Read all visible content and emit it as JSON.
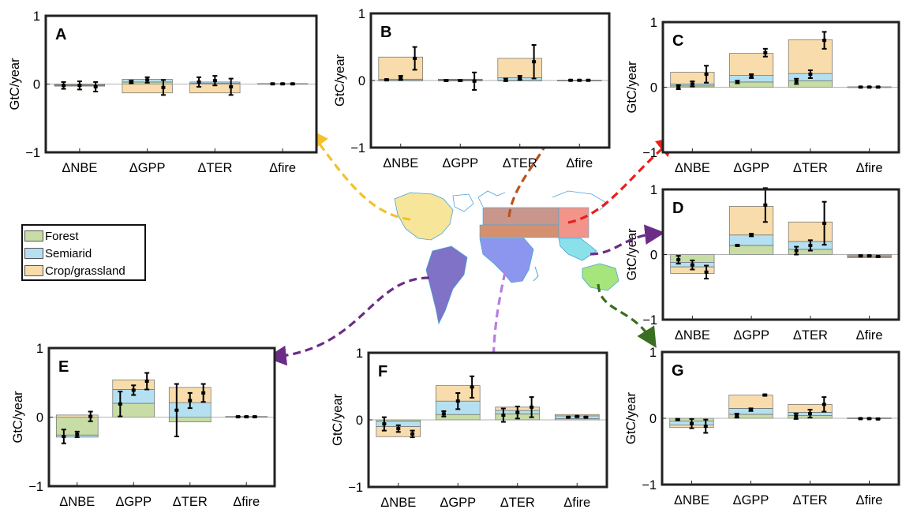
{
  "colors": {
    "forest": "#c7dda5",
    "semiarid": "#b4e0f2",
    "crop": "#f8dcab",
    "arrow_yellow": "#f3c12b",
    "arrow_brown": "#b6531f",
    "arrow_red": "#e8201b",
    "arrow_purple": "#6b2c85",
    "arrow_lilac": "#b77de0",
    "arrow_green": "#3a6e20"
  },
  "legend": {
    "forest": "Forest",
    "semiarid": "Semiarid",
    "crop": "Crop/grassland"
  },
  "chart_data": [
    {
      "type": "bar",
      "panel": "A",
      "categories": [
        "ΔNBE",
        "ΔGPP",
        "ΔTER",
        "Δfire"
      ],
      "ylabel": "GtC/year",
      "ylim": [
        -1,
        1
      ],
      "yticks": [
        "1",
        "0",
        "−1"
      ],
      "series": [
        {
          "name": "Forest",
          "values": [
            -0.02,
            0.03,
            0.01,
            0.003
          ]
        },
        {
          "name": "Semiarid",
          "values": [
            -0.01,
            0.04,
            0.02,
            0.002
          ]
        },
        {
          "name": "Crop/grassland",
          "values": [
            0.0,
            -0.13,
            -0.13,
            0.002
          ]
        }
      ],
      "errors": [
        {
          "cat": 0,
          "off": -0.32,
          "v": -0.02,
          "e": 0.05
        },
        {
          "cat": 0,
          "off": 0.0,
          "v": -0.02,
          "e": 0.06
        },
        {
          "cat": 0,
          "off": 0.32,
          "v": -0.04,
          "e": 0.07
        },
        {
          "cat": 1,
          "off": -0.32,
          "v": 0.03,
          "e": 0.02
        },
        {
          "cat": 1,
          "off": 0.0,
          "v": 0.06,
          "e": 0.04
        },
        {
          "cat": 1,
          "off": 0.32,
          "v": -0.05,
          "e": 0.11
        },
        {
          "cat": 2,
          "off": -0.32,
          "v": 0.03,
          "e": 0.07
        },
        {
          "cat": 2,
          "off": 0.0,
          "v": 0.05,
          "e": 0.07
        },
        {
          "cat": 2,
          "off": 0.32,
          "v": -0.04,
          "e": 0.12
        },
        {
          "cat": 3,
          "off": -0.2,
          "v": 0.003,
          "e": 0.005
        },
        {
          "cat": 3,
          "off": 0.0,
          "v": 0.003,
          "e": 0.005
        },
        {
          "cat": 3,
          "off": 0.2,
          "v": 0.003,
          "e": 0.005
        }
      ]
    },
    {
      "type": "bar",
      "panel": "B",
      "categories": [
        "ΔNBE",
        "ΔGPP",
        "ΔTER",
        "Δfire"
      ],
      "ylabel": "GtC/year",
      "ylim": [
        -1,
        1
      ],
      "yticks": [
        "1",
        "0",
        "−1"
      ],
      "series": [
        {
          "name": "Forest",
          "values": [
            0.0,
            0.0,
            0.0,
            0.0
          ]
        },
        {
          "name": "Semiarid",
          "values": [
            0.02,
            0.01,
            0.04,
            0.003
          ]
        },
        {
          "name": "Crop/grassland",
          "values": [
            0.33,
            0.01,
            0.29,
            0.002
          ]
        }
      ],
      "errors": [
        {
          "cat": 0,
          "off": -0.32,
          "v": 0.01,
          "e": 0.01
        },
        {
          "cat": 0,
          "off": 0.0,
          "v": 0.04,
          "e": 0.03
        },
        {
          "cat": 0,
          "off": 0.32,
          "v": 0.33,
          "e": 0.17
        },
        {
          "cat": 1,
          "off": -0.32,
          "v": 0.0,
          "e": 0.01
        },
        {
          "cat": 1,
          "off": 0.0,
          "v": 0.0,
          "e": 0.01
        },
        {
          "cat": 1,
          "off": 0.32,
          "v": -0.01,
          "e": 0.13
        },
        {
          "cat": 2,
          "off": -0.32,
          "v": 0.01,
          "e": 0.02
        },
        {
          "cat": 2,
          "off": 0.0,
          "v": 0.04,
          "e": 0.03
        },
        {
          "cat": 2,
          "off": 0.32,
          "v": 0.28,
          "e": 0.25
        },
        {
          "cat": 3,
          "off": -0.2,
          "v": 0.003,
          "e": 0.005
        },
        {
          "cat": 3,
          "off": 0.0,
          "v": 0.003,
          "e": 0.005
        },
        {
          "cat": 3,
          "off": 0.2,
          "v": 0.003,
          "e": 0.005
        }
      ]
    },
    {
      "type": "bar",
      "panel": "C",
      "categories": [
        "ΔNBE",
        "ΔGPP",
        "ΔTER",
        "Δfire"
      ],
      "ylabel": "GtC/year",
      "ylim": [
        -1,
        1
      ],
      "yticks": [
        "1",
        "0",
        "−1"
      ],
      "series": [
        {
          "name": "Forest",
          "values": [
            0.02,
            0.08,
            0.1,
            0.002
          ]
        },
        {
          "name": "Semiarid",
          "values": [
            0.03,
            0.1,
            0.11,
            0.002
          ]
        },
        {
          "name": "Crop/grassland",
          "values": [
            0.18,
            0.34,
            0.52,
            0.002
          ]
        }
      ],
      "errors": [
        {
          "cat": 0,
          "off": -0.32,
          "v": 0.0,
          "e": 0.03
        },
        {
          "cat": 0,
          "off": 0.0,
          "v": 0.05,
          "e": 0.04
        },
        {
          "cat": 0,
          "off": 0.32,
          "v": 0.2,
          "e": 0.13
        },
        {
          "cat": 1,
          "off": -0.32,
          "v": 0.08,
          "e": 0.02
        },
        {
          "cat": 1,
          "off": 0.0,
          "v": 0.17,
          "e": 0.03
        },
        {
          "cat": 1,
          "off": 0.32,
          "v": 0.53,
          "e": 0.06
        },
        {
          "cat": 2,
          "off": -0.32,
          "v": 0.09,
          "e": 0.04
        },
        {
          "cat": 2,
          "off": 0.0,
          "v": 0.2,
          "e": 0.06
        },
        {
          "cat": 2,
          "off": 0.32,
          "v": 0.72,
          "e": 0.13
        },
        {
          "cat": 3,
          "off": -0.2,
          "v": 0.002,
          "e": 0.004
        },
        {
          "cat": 3,
          "off": 0.0,
          "v": 0.002,
          "e": 0.004
        },
        {
          "cat": 3,
          "off": 0.2,
          "v": 0.002,
          "e": 0.004
        }
      ]
    },
    {
      "type": "bar",
      "panel": "D",
      "categories": [
        "ΔNBE",
        "ΔGPP",
        "ΔTER",
        "Δfire"
      ],
      "ylabel": "GtC/year",
      "ylim": [
        -1,
        1
      ],
      "yticks": [
        "1",
        "0",
        "−1"
      ],
      "series": [
        {
          "name": "Forest",
          "values": [
            -0.12,
            0.14,
            0.08,
            -0.02
          ]
        },
        {
          "name": "Semiarid",
          "values": [
            -0.07,
            0.16,
            0.12,
            -0.01
          ]
        },
        {
          "name": "Crop/grassland",
          "values": [
            -0.1,
            0.44,
            0.3,
            -0.02
          ]
        }
      ],
      "errors": [
        {
          "cat": 0,
          "off": -0.32,
          "v": -0.08,
          "e": 0.06
        },
        {
          "cat": 0,
          "off": 0.0,
          "v": -0.16,
          "e": 0.07
        },
        {
          "cat": 0,
          "off": 0.32,
          "v": -0.27,
          "e": 0.1
        },
        {
          "cat": 1,
          "off": -0.32,
          "v": 0.14,
          "e": 0.01
        },
        {
          "cat": 1,
          "off": 0.0,
          "v": 0.3,
          "e": 0.02
        },
        {
          "cat": 1,
          "off": 0.32,
          "v": 0.76,
          "e": 0.26
        },
        {
          "cat": 2,
          "off": -0.32,
          "v": 0.06,
          "e": 0.06
        },
        {
          "cat": 2,
          "off": 0.0,
          "v": 0.14,
          "e": 0.08
        },
        {
          "cat": 2,
          "off": 0.32,
          "v": 0.48,
          "e": 0.33
        },
        {
          "cat": 3,
          "off": -0.2,
          "v": -0.02,
          "e": 0.005
        },
        {
          "cat": 3,
          "off": 0.0,
          "v": -0.02,
          "e": 0.005
        },
        {
          "cat": 3,
          "off": 0.2,
          "v": -0.03,
          "e": 0.005
        }
      ]
    },
    {
      "type": "bar",
      "panel": "E",
      "categories": [
        "ΔNBE",
        "ΔGPP",
        "ΔTER",
        "Δfire"
      ],
      "ylabel": "GtC/year",
      "ylim": [
        -1,
        1
      ],
      "yticks": [
        "1",
        "0",
        "−1"
      ],
      "series": [
        {
          "name": "Forest",
          "values": [
            -0.26,
            0.2,
            -0.07,
            0.003
          ]
        },
        {
          "name": "Semiarid",
          "values": [
            -0.03,
            0.2,
            0.21,
            0.003
          ]
        },
        {
          "name": "Crop/grassland",
          "values": [
            0.03,
            0.14,
            0.22,
            0.003
          ]
        }
      ],
      "errors": [
        {
          "cat": 0,
          "off": -0.32,
          "v": -0.28,
          "e": 0.1
        },
        {
          "cat": 0,
          "off": 0.0,
          "v": -0.25,
          "e": 0.04
        },
        {
          "cat": 0,
          "off": 0.32,
          "v": 0.01,
          "e": 0.07
        },
        {
          "cat": 1,
          "off": -0.32,
          "v": 0.19,
          "e": 0.18
        },
        {
          "cat": 1,
          "off": 0.0,
          "v": 0.39,
          "e": 0.07
        },
        {
          "cat": 1,
          "off": 0.32,
          "v": 0.52,
          "e": 0.12
        },
        {
          "cat": 2,
          "off": -0.32,
          "v": 0.1,
          "e": 0.38
        },
        {
          "cat": 2,
          "off": 0.0,
          "v": 0.24,
          "e": 0.11
        },
        {
          "cat": 2,
          "off": 0.32,
          "v": 0.35,
          "e": 0.13
        },
        {
          "cat": 3,
          "off": -0.2,
          "v": 0.005,
          "e": 0.004
        },
        {
          "cat": 3,
          "off": 0.0,
          "v": 0.005,
          "e": 0.004
        },
        {
          "cat": 3,
          "off": 0.2,
          "v": 0.005,
          "e": 0.004
        }
      ]
    },
    {
      "type": "bar",
      "panel": "F",
      "categories": [
        "ΔNBE",
        "ΔGPP",
        "ΔTER",
        "Δfire"
      ],
      "ylabel": "GtC/year",
      "ylim": [
        -1,
        1
      ],
      "yticks": [
        "1",
        "0",
        "−1"
      ],
      "series": [
        {
          "name": "Forest",
          "values": [
            -0.02,
            0.08,
            0.09,
            0.02
          ]
        },
        {
          "name": "Semiarid",
          "values": [
            -0.08,
            0.2,
            0.05,
            0.04
          ]
        },
        {
          "name": "Crop/grassland",
          "values": [
            -0.15,
            0.23,
            0.05,
            0.02
          ]
        }
      ],
      "errors": [
        {
          "cat": 0,
          "off": -0.32,
          "v": -0.06,
          "e": 0.1
        },
        {
          "cat": 0,
          "off": 0.0,
          "v": -0.13,
          "e": 0.05
        },
        {
          "cat": 0,
          "off": 0.32,
          "v": -0.21,
          "e": 0.05
        },
        {
          "cat": 1,
          "off": -0.32,
          "v": 0.09,
          "e": 0.04
        },
        {
          "cat": 1,
          "off": 0.0,
          "v": 0.28,
          "e": 0.12
        },
        {
          "cat": 1,
          "off": 0.32,
          "v": 0.49,
          "e": 0.16
        },
        {
          "cat": 2,
          "off": -0.32,
          "v": 0.07,
          "e": 0.1
        },
        {
          "cat": 2,
          "off": 0.0,
          "v": 0.11,
          "e": 0.09
        },
        {
          "cat": 2,
          "off": 0.32,
          "v": 0.19,
          "e": 0.15
        },
        {
          "cat": 3,
          "off": -0.2,
          "v": 0.04,
          "e": 0.005
        },
        {
          "cat": 3,
          "off": 0.0,
          "v": 0.05,
          "e": 0.005
        },
        {
          "cat": 3,
          "off": 0.2,
          "v": 0.04,
          "e": 0.005
        }
      ]
    },
    {
      "type": "bar",
      "panel": "G",
      "categories": [
        "ΔNBE",
        "ΔGPP",
        "ΔTER",
        "Δfire"
      ],
      "ylabel": "GtC/year",
      "ylim": [
        -1,
        1
      ],
      "yticks": [
        "1",
        "0",
        "−1"
      ],
      "series": [
        {
          "name": "Forest",
          "values": [
            -0.04,
            0.06,
            0.04,
            0.002
          ]
        },
        {
          "name": "Semiarid",
          "values": [
            -0.06,
            0.09,
            0.05,
            0.002
          ]
        },
        {
          "name": "Crop/grassland",
          "values": [
            -0.04,
            0.2,
            0.12,
            0.002
          ]
        }
      ],
      "errors": [
        {
          "cat": 0,
          "off": -0.32,
          "v": -0.02,
          "e": 0.01
        },
        {
          "cat": 0,
          "off": 0.0,
          "v": -0.08,
          "e": 0.07
        },
        {
          "cat": 0,
          "off": 0.32,
          "v": -0.12,
          "e": 0.1
        },
        {
          "cat": 1,
          "off": -0.32,
          "v": 0.04,
          "e": 0.03
        },
        {
          "cat": 1,
          "off": 0.0,
          "v": 0.13,
          "e": 0.02
        },
        {
          "cat": 1,
          "off": 0.32,
          "v": 0.35,
          "e": 0.01
        },
        {
          "cat": 2,
          "off": -0.32,
          "v": 0.03,
          "e": 0.04
        },
        {
          "cat": 2,
          "off": 0.0,
          "v": 0.07,
          "e": 0.06
        },
        {
          "cat": 2,
          "off": 0.32,
          "v": 0.21,
          "e": 0.11
        },
        {
          "cat": 3,
          "off": -0.2,
          "v": -0.005,
          "e": 0.004
        },
        {
          "cat": 3,
          "off": 0.0,
          "v": -0.005,
          "e": 0.004
        },
        {
          "cat": 3,
          "off": 0.2,
          "v": -0.01,
          "e": 0.004
        }
      ]
    }
  ],
  "map": {
    "regions": [
      {
        "label": "North America",
        "color": "#f7e59a"
      },
      {
        "label": "South America",
        "color": "#7f72c7"
      },
      {
        "label": "Northern Eurasia",
        "color": "#c9968c"
      },
      {
        "label": "Middle East",
        "color": "#d5906f"
      },
      {
        "label": "East Asia",
        "color": "#f2948a"
      },
      {
        "label": "Africa",
        "color": "#8d96ee"
      },
      {
        "label": "Southeast Asia",
        "color": "#8be1ea"
      },
      {
        "label": "Australia",
        "color": "#a5e57b"
      }
    ]
  }
}
